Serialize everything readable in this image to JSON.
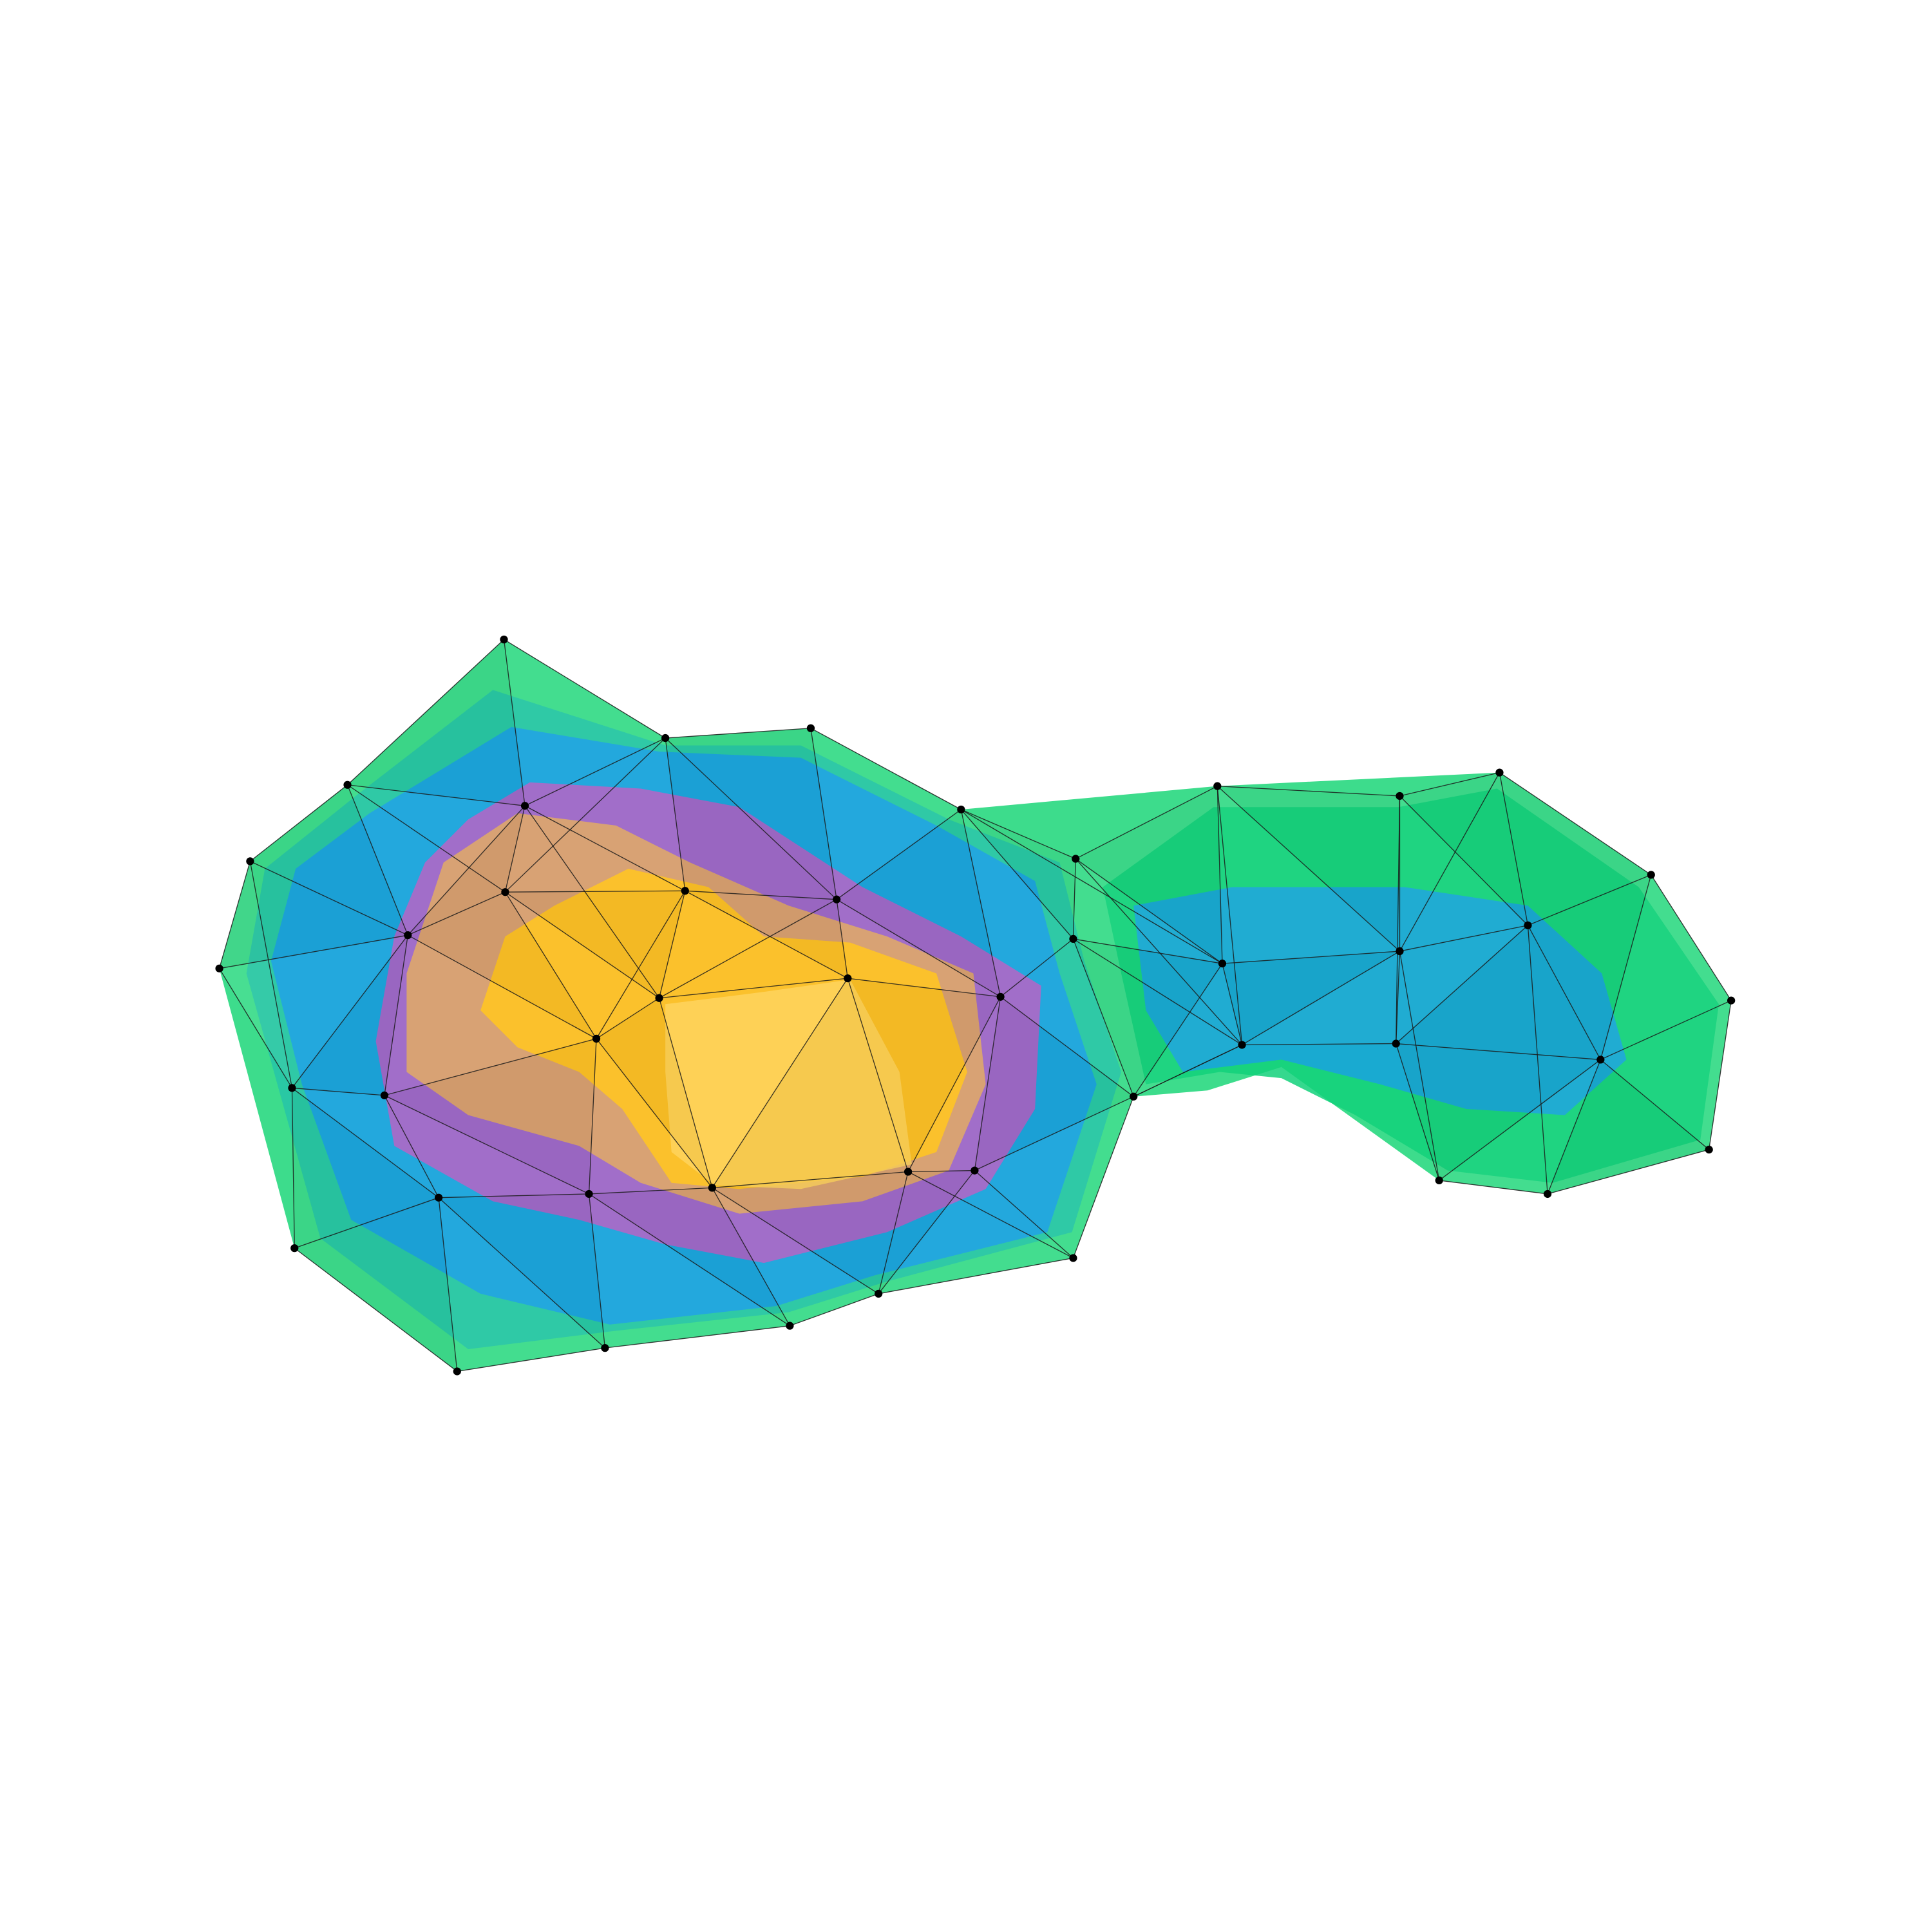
{
  "figure": {
    "kind": "triangulated mesh with contour shading",
    "colors": {
      "background": "#ffffff",
      "edge": "#1a1a1a",
      "vertex": "#000000",
      "band_outer": "#3ddc8c",
      "band_green": "#12d17a",
      "band_teal": "#1ab8b8",
      "band_blue": "#1aa0e6",
      "band_purple": "#b55fc4",
      "band_orange": "#e0a860",
      "band_yellow": "#ffc21e",
      "band_lightyellow": "#ffd45c"
    }
  }
}
